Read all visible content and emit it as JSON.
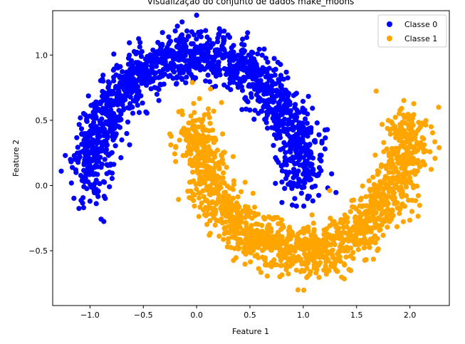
{
  "chart_data": {
    "type": "scatter",
    "title": "Visualização do conjunto de dados make_moons",
    "xlabel": "Feature 1",
    "ylabel": "Feature 2",
    "xlim": [
      -1.35,
      2.37
    ],
    "ylim": [
      -0.92,
      1.34
    ],
    "xticks": [
      -1.0,
      -0.5,
      0.0,
      0.5,
      1.0,
      1.5,
      2.0
    ],
    "xtick_labels": [
      "−1.0",
      "−0.5",
      "0.0",
      "0.5",
      "1.0",
      "1.5",
      "2.0"
    ],
    "yticks": [
      -0.5,
      0.0,
      0.5,
      1.0
    ],
    "ytick_labels": [
      "−0.5",
      "0.0",
      "0.5",
      "1.0"
    ],
    "grid": false,
    "legend_position": "top-right",
    "series": [
      {
        "name": "Classe 0",
        "color": "#0000ff",
        "generator": {
          "kind": "upper-moon",
          "n": 1500,
          "noise": 0.1,
          "seed": 7
        },
        "extra_points": [
          [
            -1.27,
            0.11
          ],
          [
            -1.06,
            -0.17
          ],
          [
            0.92,
            -0.1
          ],
          [
            1.04,
            -0.1
          ],
          [
            0.8,
            -0.13
          ]
        ]
      },
      {
        "name": "Classe 1",
        "color": "#ffa500",
        "generator": {
          "kind": "lower-moon",
          "n": 1500,
          "noise": 0.1,
          "seed": 11
        },
        "extra_points": [
          [
            -0.04,
            0.79
          ],
          [
            2.27,
            0.6
          ],
          [
            0.95,
            -0.8
          ],
          [
            2.2,
            0.45
          ],
          [
            0.13,
            0.74
          ]
        ]
      }
    ]
  }
}
